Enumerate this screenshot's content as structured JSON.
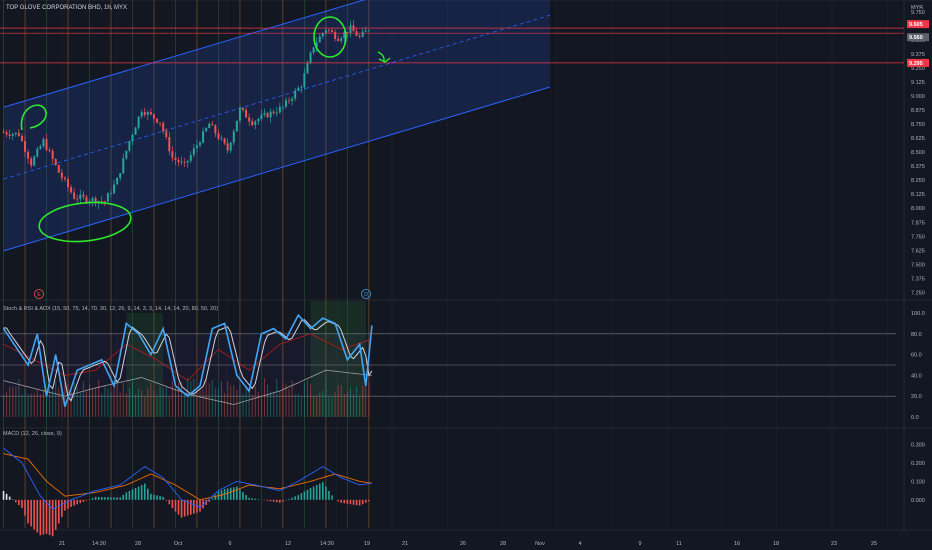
{
  "header": {
    "symbol_title": "TOP GLOVE CORPORATION BHD, 1h, MYX",
    "currency": "MYR"
  },
  "colors": {
    "background": "#131722",
    "grid": "#1e222d",
    "up": "#26a69a",
    "down": "#ef5350",
    "channel_line": "#2962ff",
    "channel_fill": "#2962ff",
    "annotation": "#2ee82e",
    "price_line": "#f23645",
    "vline_orange": "#c77d2e",
    "vline_green": "#2e7d32",
    "k_line": "#42a5f5",
    "d_line": "#d1d4dc",
    "rsi_line": "#b71c1c",
    "macd_line": "#2962ff",
    "signal_line": "#ef6c00"
  },
  "price_axis": {
    "ticks": [
      "9.750",
      "9.625",
      "9.500",
      "9.375",
      "9.250",
      "9.125",
      "9.000",
      "8.875",
      "8.750",
      "8.625",
      "8.500",
      "8.375",
      "8.250",
      "8.125",
      "8.000",
      "7.875",
      "7.750",
      "7.625",
      "7.500",
      "7.375",
      "7.250"
    ],
    "tag_current": "9.560",
    "tag_high": "9.605",
    "tag_low": "9.295"
  },
  "stoch_panel": {
    "title": "Stoch & RSI & ADX (15, 50, 75, 14, 70, 30, 12, 26, 9, 14, 3, 3, 14, 14, 14, 20, 80, 50, 20)",
    "ticks": [
      "100.0",
      "80.0",
      "60.0",
      "40.0",
      "20.0",
      "0.0"
    ],
    "levels": [
      80,
      50,
      20
    ]
  },
  "macd_panel": {
    "title": "MACD (12, 26, close, 9)",
    "ticks": [
      "0.300",
      "0.200",
      "0.100",
      "0.000"
    ]
  },
  "time_axis": {
    "labels": [
      "21",
      "14:30",
      "28",
      "Oct",
      "6",
      "12",
      "14:30",
      "19",
      "21",
      "26",
      "28",
      "Nov",
      "4",
      "9",
      "11",
      "16",
      "18",
      "23",
      "25"
    ]
  },
  "events": {
    "earnings_badge": "E",
    "dividend_badge": "D"
  },
  "chart_data": [
    {
      "type": "candlestick",
      "title": "TOP GLOVE CORPORATION BHD, 1h, MYX",
      "ylim": [
        7.2,
        9.82
      ],
      "n_bars": 120,
      "path_anchors": [
        [
          0,
          8.68
        ],
        [
          6,
          8.66
        ],
        [
          10,
          8.4
        ],
        [
          14,
          8.6
        ],
        [
          19,
          8.32
        ],
        [
          24,
          8.1
        ],
        [
          34,
          8.06
        ],
        [
          38,
          8.25
        ],
        [
          42,
          8.6
        ],
        [
          46,
          8.88
        ],
        [
          52,
          8.77
        ],
        [
          56,
          8.45
        ],
        [
          60,
          8.38
        ],
        [
          68,
          8.75
        ],
        [
          74,
          8.52
        ],
        [
          78,
          8.88
        ],
        [
          82,
          8.77
        ],
        [
          92,
          8.9
        ],
        [
          98,
          9.1
        ],
        [
          102,
          9.45
        ],
        [
          106,
          9.6
        ],
        [
          110,
          9.52
        ],
        [
          114,
          9.6
        ],
        [
          117,
          9.52
        ],
        [
          120,
          9.6
        ]
      ],
      "price_lines": [
        9.605,
        9.56,
        9.295
      ],
      "channel": {
        "upper": [
          [
            0,
            8.9
          ],
          [
            178,
            10.35
          ]
        ],
        "lower": [
          [
            0,
            7.62
          ],
          [
            178,
            9.08
          ]
        ],
        "median": [
          [
            0,
            8.26
          ],
          [
            178,
            9.72
          ]
        ]
      }
    },
    {
      "type": "line",
      "title": "Stoch & RSI & ADX",
      "ylim": [
        0,
        100
      ],
      "levels": [
        80,
        50,
        20
      ],
      "stoch_k_anchors": [
        [
          0,
          85
        ],
        [
          8,
          50
        ],
        [
          11,
          80
        ],
        [
          14,
          20
        ],
        [
          17,
          60
        ],
        [
          20,
          10
        ],
        [
          24,
          45
        ],
        [
          32,
          55
        ],
        [
          36,
          30
        ],
        [
          40,
          90
        ],
        [
          44,
          80
        ],
        [
          48,
          60
        ],
        [
          52,
          85
        ],
        [
          56,
          30
        ],
        [
          60,
          20
        ],
        [
          64,
          30
        ],
        [
          68,
          85
        ],
        [
          72,
          90
        ],
        [
          76,
          40
        ],
        [
          80,
          25
        ],
        [
          84,
          80
        ],
        [
          88,
          85
        ],
        [
          92,
          75
        ],
        [
          96,
          98
        ],
        [
          100,
          85
        ],
        [
          104,
          95
        ],
        [
          108,
          90
        ],
        [
          112,
          55
        ],
        [
          116,
          70
        ],
        [
          118,
          30
        ],
        [
          120,
          88
        ]
      ],
      "rsi_anchors": [
        [
          0,
          70
        ],
        [
          10,
          55
        ],
        [
          20,
          40
        ],
        [
          30,
          45
        ],
        [
          40,
          70
        ],
        [
          50,
          55
        ],
        [
          60,
          35
        ],
        [
          70,
          65
        ],
        [
          80,
          45
        ],
        [
          90,
          70
        ],
        [
          100,
          80
        ],
        [
          110,
          65
        ],
        [
          120,
          75
        ]
      ],
      "adx_anchors": [
        [
          0,
          35
        ],
        [
          20,
          20
        ],
        [
          30,
          28
        ],
        [
          45,
          38
        ],
        [
          60,
          22
        ],
        [
          75,
          12
        ],
        [
          90,
          25
        ],
        [
          105,
          45
        ],
        [
          120,
          40
        ]
      ]
    },
    {
      "type": "bar",
      "title": "MACD (12, 26, close, 9)",
      "ylim": [
        -0.12,
        0.34
      ],
      "macd_anchors": [
        [
          0,
          0.28
        ],
        [
          6,
          0.2
        ],
        [
          12,
          0.02
        ],
        [
          16,
          -0.05
        ],
        [
          22,
          0.0
        ],
        [
          30,
          0.05
        ],
        [
          38,
          0.08
        ],
        [
          46,
          0.18
        ],
        [
          52,
          0.12
        ],
        [
          58,
          0.0
        ],
        [
          64,
          -0.04
        ],
        [
          70,
          0.05
        ],
        [
          76,
          0.1
        ],
        [
          82,
          0.08
        ],
        [
          90,
          0.05
        ],
        [
          96,
          0.1
        ],
        [
          104,
          0.18
        ],
        [
          110,
          0.12
        ],
        [
          116,
          0.08
        ],
        [
          120,
          0.09
        ]
      ],
      "signal_anchors": [
        [
          0,
          0.25
        ],
        [
          8,
          0.22
        ],
        [
          14,
          0.1
        ],
        [
          20,
          0.02
        ],
        [
          30,
          0.04
        ],
        [
          40,
          0.08
        ],
        [
          48,
          0.14
        ],
        [
          56,
          0.08
        ],
        [
          64,
          0.0
        ],
        [
          72,
          0.03
        ],
        [
          80,
          0.08
        ],
        [
          90,
          0.06
        ],
        [
          100,
          0.1
        ],
        [
          108,
          0.14
        ],
        [
          116,
          0.1
        ],
        [
          120,
          0.09
        ]
      ]
    }
  ]
}
